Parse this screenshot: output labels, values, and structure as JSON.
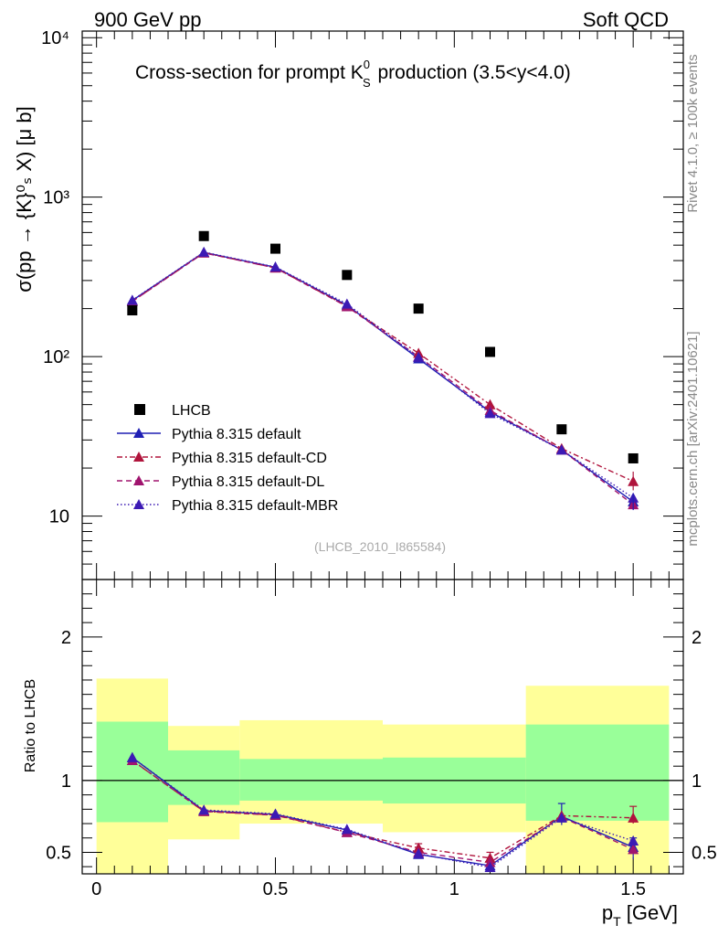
{
  "header": {
    "left": "900 GeV pp",
    "right": "Soft QCD",
    "side_top": "Rivet 4.1.0, ≥ 100k events",
    "side_bottom": "mcplots.cern.ch [arXiv:2401.10621]"
  },
  "colors": {
    "data": "#000000",
    "default": "#1f1fb4",
    "cd": "#b0143c",
    "dl": "#a0146e",
    "mbr": "#3c1ab4",
    "band_outer": "#ffff99",
    "band_inner": "#99ff99"
  },
  "chart_data": [
    {
      "type": "scatter",
      "panel": "main",
      "title_main": "Cross-section for prompt K",
      "title_super": "0",
      "title_sub": "S",
      "title_tail": " production (3.5<y<4.0)",
      "ylabel": "σ(pp → {K}⁰ₛ X) [μ b]",
      "yscale": "log",
      "ylim": [
        4,
        11000
      ],
      "xlim": [
        -0.04,
        1.64
      ],
      "ytick_labels": [
        "10",
        "10²",
        "10³",
        "10⁴"
      ],
      "analysis_tag": "(LHCB_2010_I865584)",
      "x": [
        0.1,
        0.3,
        0.5,
        0.7,
        0.9,
        1.1,
        1.3,
        1.5
      ],
      "data": {
        "name": "LHCB",
        "values": [
          195,
          570,
          475,
          325,
          200,
          107,
          35,
          23
        ]
      },
      "series": [
        {
          "name": "Pythia 8.315 default",
          "key": "default",
          "style": "solid",
          "values": [
            225,
            450,
            363,
            210,
            97,
            45,
            26,
            12.3
          ]
        },
        {
          "name": "Pythia 8.315 default-CD",
          "key": "cd",
          "style": "dashdot",
          "values": [
            222,
            448,
            360,
            207,
            105,
            50,
            26.5,
            16.5
          ]
        },
        {
          "name": "Pythia 8.315 default-DL",
          "key": "dl",
          "style": "dashed",
          "values": [
            222,
            447,
            360,
            206,
            100,
            46,
            26,
            11.8
          ]
        },
        {
          "name": "Pythia 8.315 default-MBR",
          "key": "mbr",
          "style": "dotted",
          "values": [
            226,
            452,
            365,
            214,
            99,
            44,
            26,
            13
          ]
        }
      ]
    },
    {
      "type": "line",
      "panel": "ratio",
      "ylabel": "Ratio to LHCB",
      "xlabel": "p",
      "xlabel_sub": "T",
      "xlabel_unit": " [GeV]",
      "ylim": [
        0.35,
        2.4
      ],
      "xticks": [
        0,
        0.5,
        1,
        1.5
      ],
      "xtick_labels": [
        "0",
        "0.5",
        "1",
        "1.5"
      ],
      "yticks": [
        0.5,
        1,
        2
      ],
      "ytick_labels": [
        "0.5",
        "1",
        "2"
      ],
      "bins": [
        {
          "lo": 0.0,
          "hi": 0.2,
          "inner": [
            0.71,
            1.41
          ],
          "outer": [
            0.35,
            1.71
          ]
        },
        {
          "lo": 0.2,
          "hi": 0.4,
          "inner": [
            0.83,
            1.21
          ],
          "outer": [
            0.59,
            1.38
          ]
        },
        {
          "lo": 0.4,
          "hi": 0.8,
          "inner": [
            0.86,
            1.15
          ],
          "outer": [
            0.7,
            1.42
          ]
        },
        {
          "lo": 0.8,
          "hi": 1.2,
          "inner": [
            0.84,
            1.16
          ],
          "outer": [
            0.64,
            1.39
          ]
        },
        {
          "lo": 1.2,
          "hi": 1.6,
          "inner": [
            0.72,
            1.39
          ],
          "outer": [
            0.35,
            1.66
          ]
        }
      ],
      "x": [
        0.1,
        0.3,
        0.5,
        0.7,
        0.9,
        1.1,
        1.3,
        1.5
      ],
      "series": [
        {
          "key": "default",
          "values": [
            1.16,
            0.79,
            0.764,
            0.655,
            0.486,
            0.407,
            0.75,
            0.535
          ]
        },
        {
          "key": "cd",
          "values": [
            1.14,
            0.785,
            0.76,
            0.64,
            0.53,
            0.46,
            0.755,
            0.74
          ]
        },
        {
          "key": "dl",
          "values": [
            1.14,
            0.785,
            0.758,
            0.638,
            0.5,
            0.43,
            0.745,
            0.52
          ]
        },
        {
          "key": "mbr",
          "values": [
            1.16,
            0.795,
            0.768,
            0.66,
            0.49,
            0.395,
            0.74,
            0.58
          ]
        }
      ]
    }
  ]
}
